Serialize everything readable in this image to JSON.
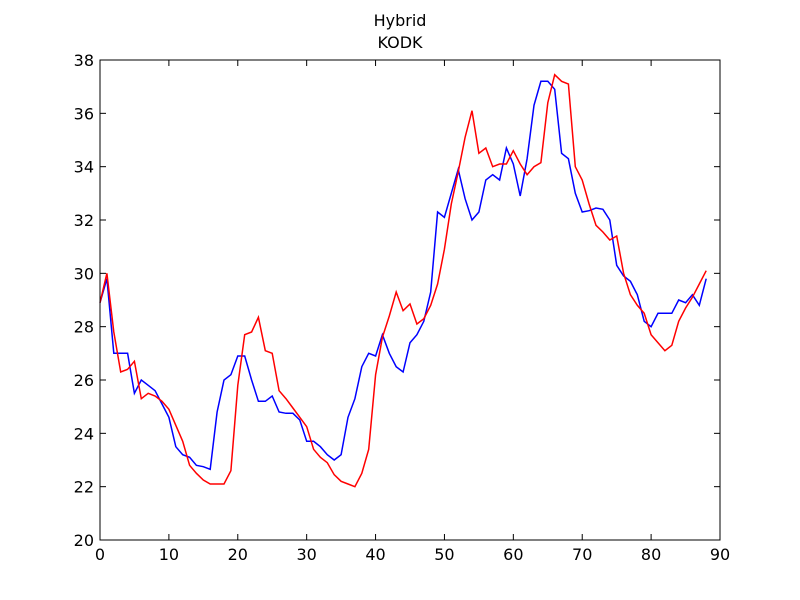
{
  "chart_data": {
    "type": "line",
    "title": "Hybrid",
    "subtitle": "KODK",
    "xlabel": "",
    "ylabel": "",
    "xlim": [
      0,
      90
    ],
    "ylim": [
      20,
      38
    ],
    "xticks": [
      0,
      10,
      20,
      30,
      40,
      50,
      60,
      70,
      80,
      90
    ],
    "yticks": [
      20,
      22,
      24,
      26,
      28,
      30,
      32,
      34,
      36,
      38
    ],
    "grid": false,
    "legend": "none",
    "series": [
      {
        "color": "#0000ff",
        "x": [
          0,
          1,
          2,
          3,
          4,
          5,
          6,
          7,
          8,
          9,
          10,
          11,
          12,
          13,
          14,
          15,
          16,
          17,
          18,
          19,
          20,
          21,
          22,
          23,
          24,
          25,
          26,
          27,
          28,
          29,
          30,
          31,
          32,
          33,
          34,
          35,
          36,
          37,
          38,
          39,
          40,
          41,
          42,
          43,
          44,
          45,
          46,
          47,
          48,
          49,
          50,
          51,
          52,
          53,
          54,
          55,
          56,
          57,
          58,
          59,
          60,
          61,
          62,
          63,
          64,
          65,
          66,
          67,
          68,
          69,
          70,
          71,
          72,
          73,
          74,
          75,
          76,
          77,
          78,
          79,
          80,
          81,
          82,
          83,
          84,
          85,
          86,
          87,
          88
        ],
        "y": [
          28.9,
          29.8,
          27.0,
          27.0,
          27.0,
          25.5,
          26.0,
          25.8,
          25.6,
          25.1,
          24.6,
          23.5,
          23.2,
          23.1,
          22.8,
          22.75,
          22.65,
          24.8,
          26.0,
          26.2,
          26.9,
          26.9,
          26.0,
          25.2,
          25.2,
          25.4,
          24.8,
          24.75,
          24.75,
          24.5,
          23.7,
          23.7,
          23.5,
          23.2,
          23.0,
          23.2,
          24.6,
          25.3,
          26.5,
          27.0,
          26.9,
          27.7,
          27.0,
          26.5,
          26.3,
          27.4,
          27.7,
          28.2,
          29.3,
          32.3,
          32.1,
          33.0,
          33.9,
          32.8,
          32.0,
          32.3,
          33.5,
          33.7,
          33.5,
          34.7,
          34.1,
          32.9,
          34.3,
          36.3,
          37.2,
          37.2,
          36.9,
          34.5,
          34.3,
          33.0,
          32.3,
          32.35,
          32.45,
          32.4,
          32.0,
          30.3,
          29.9,
          29.7,
          29.2,
          28.2,
          28.0,
          28.5,
          28.5,
          28.5,
          29.0,
          28.9,
          29.2,
          28.8,
          29.8
        ]
      },
      {
        "color": "#ff0000",
        "x": [
          0,
          1,
          2,
          3,
          4,
          5,
          6,
          7,
          8,
          9,
          10,
          11,
          12,
          13,
          14,
          15,
          16,
          17,
          18,
          19,
          20,
          21,
          22,
          23,
          24,
          25,
          26,
          27,
          28,
          29,
          30,
          31,
          32,
          33,
          34,
          35,
          36,
          37,
          38,
          39,
          40,
          41,
          42,
          43,
          44,
          45,
          46,
          47,
          48,
          49,
          50,
          51,
          52,
          53,
          54,
          55,
          56,
          57,
          58,
          59,
          60,
          61,
          62,
          63,
          64,
          65,
          66,
          67,
          68,
          69,
          70,
          71,
          72,
          73,
          74,
          75,
          76,
          77,
          78,
          79,
          80,
          81,
          82,
          83,
          84,
          85,
          86,
          87,
          88
        ],
        "y": [
          28.9,
          30.0,
          27.8,
          26.3,
          26.4,
          26.7,
          25.3,
          25.5,
          25.4,
          25.2,
          24.9,
          24.3,
          23.7,
          22.8,
          22.5,
          22.25,
          22.1,
          22.1,
          22.1,
          22.6,
          25.8,
          27.7,
          27.8,
          28.35,
          27.1,
          27.0,
          25.6,
          25.3,
          24.95,
          24.6,
          24.25,
          23.4,
          23.1,
          22.9,
          22.45,
          22.2,
          22.1,
          22.0,
          22.5,
          23.4,
          26.2,
          27.6,
          28.4,
          29.3,
          28.6,
          28.85,
          28.1,
          28.3,
          28.8,
          29.6,
          30.9,
          32.6,
          33.8,
          35.1,
          36.1,
          34.5,
          34.7,
          34.0,
          34.1,
          34.1,
          34.6,
          34.1,
          33.7,
          34.0,
          34.15,
          36.4,
          37.45,
          37.2,
          37.1,
          34.0,
          33.5,
          32.6,
          31.8,
          31.55,
          31.25,
          31.4,
          30.0,
          29.2,
          28.8,
          28.5,
          27.7,
          27.4,
          27.1,
          27.3,
          28.2,
          28.7,
          29.1,
          29.6,
          30.1
        ]
      }
    ]
  }
}
